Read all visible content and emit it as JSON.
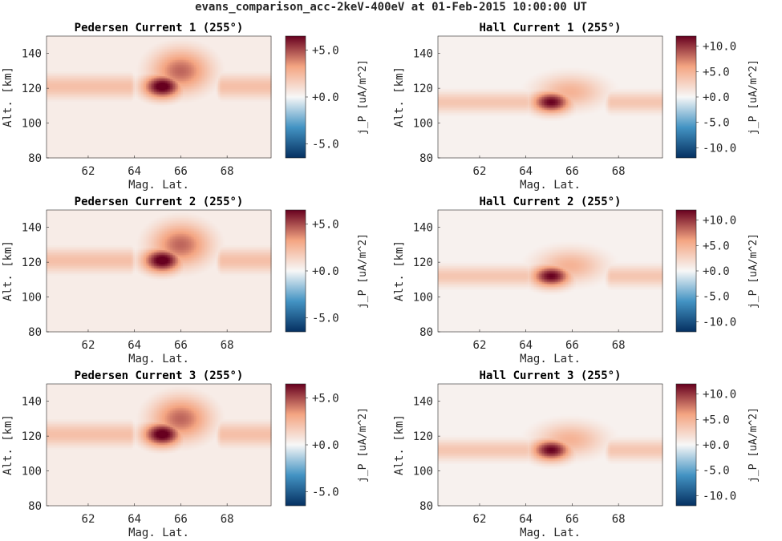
{
  "suptitle": "evans_comparison_acc-2keV-400eV at 01-Feb-2015 10:00:00 UT",
  "colors": {
    "cmap_low": "#053061",
    "cmap_mid_low": "#4393c3",
    "cmap_center": "#f7f7f7",
    "cmap_mid_high": "#f4a582",
    "cmap_high": "#67001f",
    "background_field": "#ede0e0"
  },
  "chart_data": [
    {
      "type": "heatmap",
      "title": "Pedersen Current 1 (255°)",
      "xlabel": "Mag. Lat.",
      "ylabel": "Alt. [km]",
      "xlim": [
        60.2,
        69.9
      ],
      "ylim": [
        80,
        150
      ],
      "xticks": [
        "62",
        "64",
        "66",
        "68"
      ],
      "yticks": [
        "80",
        "100",
        "120",
        "140"
      ],
      "colorbar": {
        "label": "j_P [uA/m^2]",
        "range": [
          -6.5,
          6.5
        ],
        "ticks": [
          "+5.0",
          "+0.0",
          "-5.0"
        ]
      },
      "features": [
        {
          "name": "background_band_west",
          "lat_range": [
            60.2,
            63.8
          ],
          "alt_center": 121,
          "alt_width": 12,
          "value": 2.2
        },
        {
          "name": "background_band_east",
          "lat_range": [
            67.8,
            69.9
          ],
          "alt_center": 121,
          "alt_width": 12,
          "value": 2.2
        },
        {
          "name": "arc_core",
          "lat_center": 65.2,
          "lat_width": 0.6,
          "alt_center": 121,
          "alt_width": 9,
          "value": 7.0
        },
        {
          "name": "arc_plume",
          "lat_center": 66.0,
          "lat_width": 0.9,
          "alt_center": 130,
          "alt_width": 16,
          "value": 4.5
        }
      ]
    },
    {
      "type": "heatmap",
      "title": "Hall Current 1 (255°)",
      "xlabel": "Mag. Lat.",
      "ylabel": "Alt. [km]",
      "xlim": [
        60.2,
        69.9
      ],
      "ylim": [
        80,
        150
      ],
      "xticks": [
        "62",
        "64",
        "66",
        "68"
      ],
      "yticks": [
        "80",
        "100",
        "120",
        "140"
      ],
      "colorbar": {
        "label": "j_P [uA/m^2]",
        "range": [
          -12,
          12
        ],
        "ticks": [
          "+10.0",
          "+5.0",
          "+0.0",
          "-5.0",
          "-10.0"
        ]
      },
      "features": [
        {
          "name": "background_band_west",
          "lat_range": [
            60.2,
            64.0
          ],
          "alt_center": 112,
          "alt_width": 10,
          "value": 3.6
        },
        {
          "name": "background_band_east",
          "lat_range": [
            67.7,
            69.9
          ],
          "alt_center": 112,
          "alt_width": 10,
          "value": 3.6
        },
        {
          "name": "arc_core",
          "lat_center": 65.1,
          "lat_width": 0.6,
          "alt_center": 112,
          "alt_width": 8,
          "value": 12.0
        },
        {
          "name": "arc_plume",
          "lat_center": 65.9,
          "lat_width": 1.0,
          "alt_center": 118,
          "alt_width": 12,
          "value": 5.0
        }
      ]
    },
    {
      "type": "heatmap",
      "title": "Pedersen Current 2 (255°)",
      "xlabel": "Mag. Lat.",
      "ylabel": "Alt. [km]",
      "xlim": [
        60.2,
        69.9
      ],
      "ylim": [
        80,
        150
      ],
      "xticks": [
        "62",
        "64",
        "66",
        "68"
      ],
      "yticks": [
        "80",
        "100",
        "120",
        "140"
      ],
      "colorbar": {
        "label": "j_P [uA/m^2]",
        "range": [
          -6.5,
          6.5
        ],
        "ticks": [
          "+5.0",
          "+0.0",
          "-5.0"
        ]
      },
      "features": [
        {
          "name": "background_band_west",
          "lat_range": [
            60.2,
            63.8
          ],
          "alt_center": 121,
          "alt_width": 12,
          "value": 2.2
        },
        {
          "name": "background_band_east",
          "lat_range": [
            67.8,
            69.9
          ],
          "alt_center": 121,
          "alt_width": 12,
          "value": 2.2
        },
        {
          "name": "arc_core",
          "lat_center": 65.2,
          "lat_width": 0.6,
          "alt_center": 121,
          "alt_width": 9,
          "value": 7.0
        },
        {
          "name": "arc_plume",
          "lat_center": 66.0,
          "lat_width": 0.9,
          "alt_center": 130,
          "alt_width": 16,
          "value": 4.5
        }
      ]
    },
    {
      "type": "heatmap",
      "title": "Hall Current 2 (255°)",
      "xlabel": "Mag. Lat.",
      "ylabel": "Alt. [km]",
      "xlim": [
        60.2,
        69.9
      ],
      "ylim": [
        80,
        150
      ],
      "xticks": [
        "62",
        "64",
        "66",
        "68"
      ],
      "yticks": [
        "80",
        "100",
        "120",
        "140"
      ],
      "colorbar": {
        "label": "j_P [uA/m^2]",
        "range": [
          -12,
          12
        ],
        "ticks": [
          "+10.0",
          "+5.0",
          "+0.0",
          "-5.0",
          "-10.0"
        ]
      },
      "features": [
        {
          "name": "background_band_west",
          "lat_range": [
            60.2,
            64.0
          ],
          "alt_center": 112,
          "alt_width": 10,
          "value": 3.6
        },
        {
          "name": "background_band_east",
          "lat_range": [
            67.7,
            69.9
          ],
          "alt_center": 112,
          "alt_width": 10,
          "value": 3.6
        },
        {
          "name": "arc_core",
          "lat_center": 65.1,
          "lat_width": 0.6,
          "alt_center": 112,
          "alt_width": 8,
          "value": 12.0
        },
        {
          "name": "arc_plume",
          "lat_center": 65.9,
          "lat_width": 1.0,
          "alt_center": 118,
          "alt_width": 12,
          "value": 5.0
        }
      ]
    },
    {
      "type": "heatmap",
      "title": "Pedersen Current 3 (255°)",
      "xlabel": "Mag. Lat.",
      "ylabel": "Alt. [km]",
      "xlim": [
        60.2,
        69.9
      ],
      "ylim": [
        80,
        150
      ],
      "xticks": [
        "62",
        "64",
        "66",
        "68"
      ],
      "yticks": [
        "80",
        "100",
        "120",
        "140"
      ],
      "colorbar": {
        "label": "j_P [uA/m^2]",
        "range": [
          -6.5,
          6.5
        ],
        "ticks": [
          "+5.0",
          "+0.0",
          "-5.0"
        ]
      },
      "features": [
        {
          "name": "background_band_west",
          "lat_range": [
            60.2,
            63.8
          ],
          "alt_center": 121,
          "alt_width": 12,
          "value": 2.2
        },
        {
          "name": "background_band_east",
          "lat_range": [
            67.8,
            69.9
          ],
          "alt_center": 121,
          "alt_width": 12,
          "value": 2.2
        },
        {
          "name": "arc_core",
          "lat_center": 65.2,
          "lat_width": 0.6,
          "alt_center": 121,
          "alt_width": 9,
          "value": 7.0
        },
        {
          "name": "arc_plume",
          "lat_center": 66.0,
          "lat_width": 0.9,
          "alt_center": 130,
          "alt_width": 16,
          "value": 4.5
        }
      ]
    },
    {
      "type": "heatmap",
      "title": "Hall Current 3 (255°)",
      "xlabel": "Mag. Lat.",
      "ylabel": "Alt. [km]",
      "xlim": [
        60.2,
        69.9
      ],
      "ylim": [
        80,
        150
      ],
      "xticks": [
        "62",
        "64",
        "66",
        "68"
      ],
      "yticks": [
        "80",
        "100",
        "120",
        "140"
      ],
      "colorbar": {
        "label": "j_P [uA/m^2]",
        "range": [
          -12,
          12
        ],
        "ticks": [
          "+10.0",
          "+5.0",
          "+0.0",
          "-5.0",
          "-10.0"
        ]
      },
      "features": [
        {
          "name": "background_band_west",
          "lat_range": [
            60.2,
            64.0
          ],
          "alt_center": 112,
          "alt_width": 10,
          "value": 3.6
        },
        {
          "name": "background_band_east",
          "lat_range": [
            67.7,
            69.9
          ],
          "alt_center": 112,
          "alt_width": 10,
          "value": 3.6
        },
        {
          "name": "arc_core",
          "lat_center": 65.1,
          "lat_width": 0.6,
          "alt_center": 112,
          "alt_width": 8,
          "value": 12.0
        },
        {
          "name": "arc_plume",
          "lat_center": 65.9,
          "lat_width": 1.0,
          "alt_center": 118,
          "alt_width": 12,
          "value": 5.0
        }
      ]
    }
  ]
}
